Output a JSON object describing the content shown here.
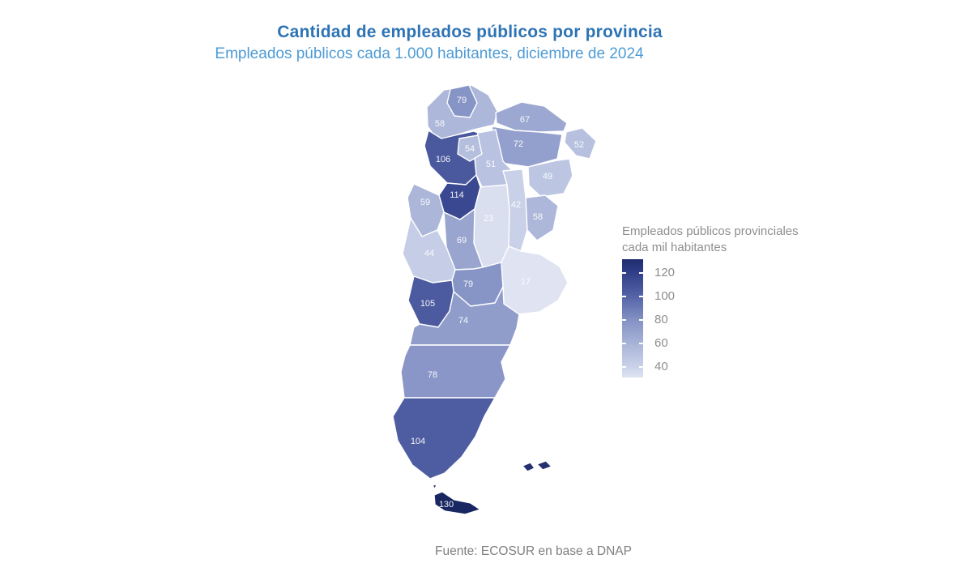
{
  "title": "Cantidad de empleados públicos por provincia",
  "subtitle": "Empleados públicos cada 1.000 habitantes, diciembre de 2024",
  "source": "Fuente: ECOSUR en base a DNAP",
  "colors": {
    "title": "#2E74B5",
    "subtitle": "#4E9BD5",
    "source": "#7f7f7f",
    "province_border": "#ffffff",
    "province_label": "#ffffff",
    "islands": "#24306f"
  },
  "legend": {
    "title_line1": "Empleados públicos provinciales",
    "title_line2": "cada mil habitantes",
    "ticks": [
      "120",
      "100",
      "80",
      "60",
      "40"
    ]
  },
  "chart_data": {
    "type": "choropleth_map",
    "region": "Argentina",
    "metric": "Empleados públicos provinciales cada mil habitantes",
    "date": "diciembre de 2024",
    "legend_range": [
      40,
      120
    ],
    "color_scale": {
      "stops": [
        [
          17,
          "#dfe3f2"
        ],
        [
          40,
          "#ccd4ea"
        ],
        [
          60,
          "#a9b4d8"
        ],
        [
          80,
          "#8593c5"
        ],
        [
          100,
          "#5665a8"
        ],
        [
          120,
          "#2d3c85"
        ],
        [
          130,
          "#182761"
        ]
      ]
    },
    "provinces": [
      {
        "name": "Jujuy",
        "value": 79
      },
      {
        "name": "Salta",
        "value": 58
      },
      {
        "name": "Formosa",
        "value": 67
      },
      {
        "name": "Chaco",
        "value": 72
      },
      {
        "name": "Misiones",
        "value": 52
      },
      {
        "name": "Corrientes",
        "value": 49
      },
      {
        "name": "Tucumán",
        "value": 54
      },
      {
        "name": "Santiago del Estero",
        "value": 51
      },
      {
        "name": "Catamarca",
        "value": 106
      },
      {
        "name": "La Rioja",
        "value": 114
      },
      {
        "name": "San Juan",
        "value": 59
      },
      {
        "name": "Córdoba",
        "value": 23
      },
      {
        "name": "Santa Fe",
        "value": 42
      },
      {
        "name": "Entre Ríos",
        "value": 58
      },
      {
        "name": "San Luis",
        "value": 69
      },
      {
        "name": "Mendoza",
        "value": 44
      },
      {
        "name": "Buenos Aires",
        "value": 17
      },
      {
        "name": "La Pampa",
        "value": 79
      },
      {
        "name": "Neuquén",
        "value": 105
      },
      {
        "name": "Río Negro",
        "value": 74
      },
      {
        "name": "Chubut",
        "value": 78
      },
      {
        "name": "Santa Cruz",
        "value": 104
      },
      {
        "name": "Tierra del Fuego",
        "value": 130
      }
    ]
  }
}
